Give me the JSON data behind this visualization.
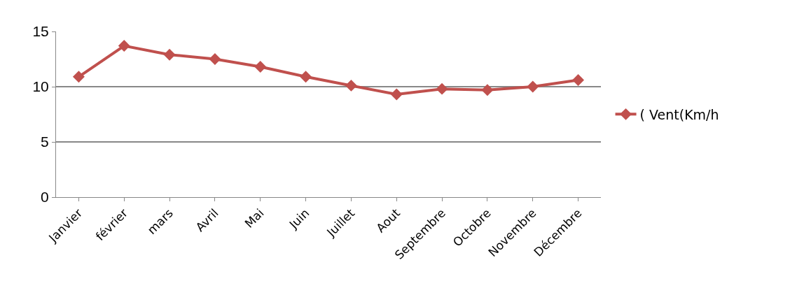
{
  "chart_data": {
    "type": "line",
    "categories": [
      "Janvier",
      "février",
      "mars",
      "Avril",
      "Mai",
      "Juin",
      "Juillet",
      "Aout",
      "Septembre",
      "Octobre",
      "Novembre",
      "Décembre"
    ],
    "series": [
      {
        "name": "( Vent(Km/h",
        "color": "#c0504d",
        "values": [
          10.9,
          13.7,
          12.9,
          12.5,
          11.8,
          10.9,
          10.1,
          9.3,
          9.8,
          9.7,
          10.0,
          10.6
        ]
      }
    ],
    "ylim": [
      0,
      15
    ],
    "yticks": [
      0,
      5,
      10,
      15
    ],
    "grid": "y",
    "legend": "right",
    "marker": "diamond",
    "line_style": "solid"
  }
}
